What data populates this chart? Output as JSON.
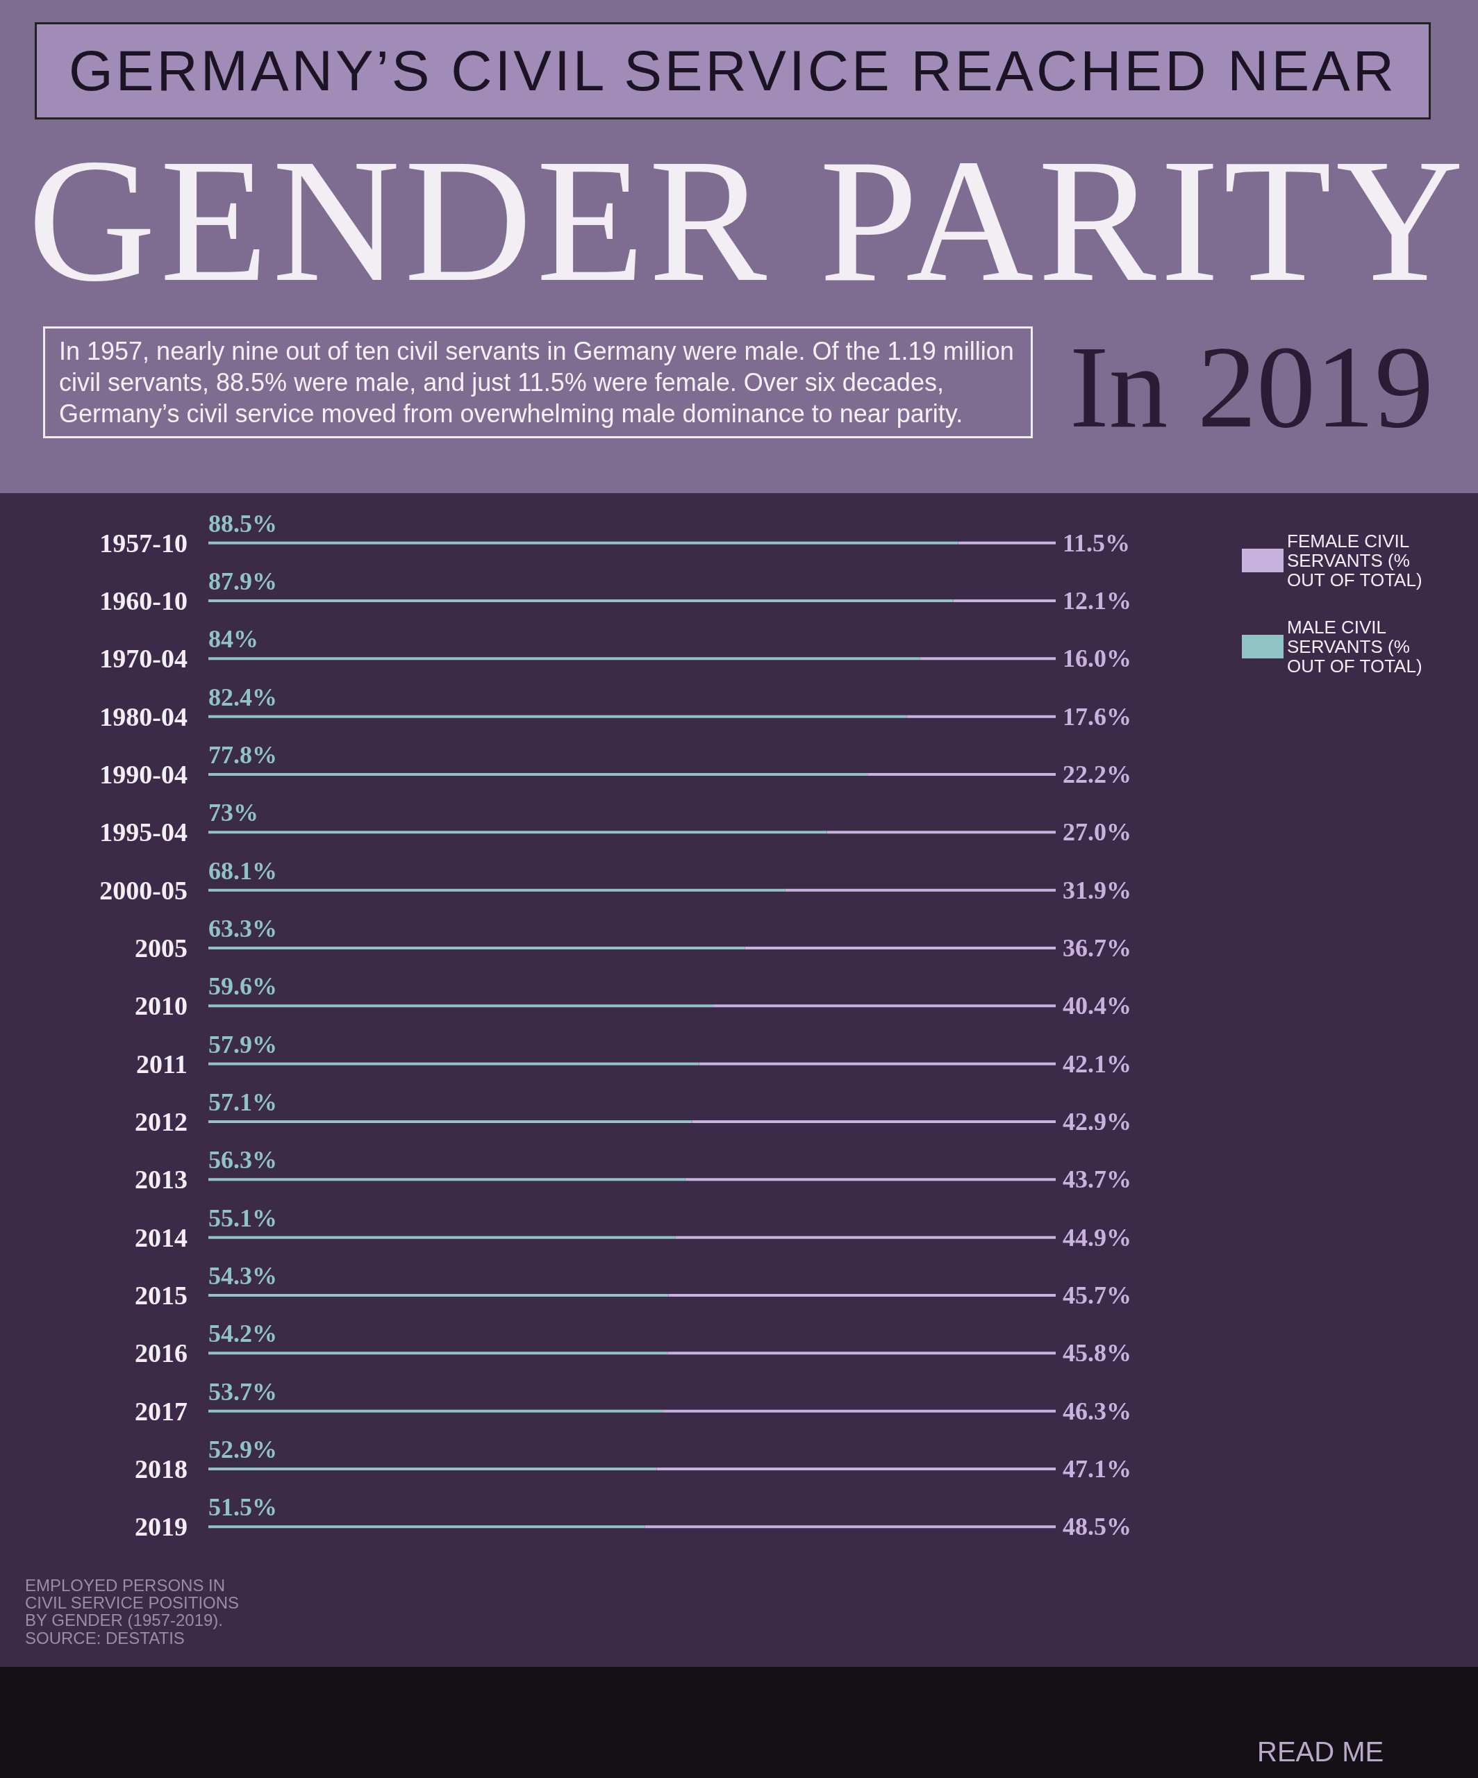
{
  "chart_data": {
    "type": "bar",
    "orientation": "horizontal",
    "title": "GERMANY’S CIVIL SERVICE REACHED NEAR",
    "subtitle": "GENDER PARITY",
    "annotations": [
      "In 2019",
      "In 1957, nearly nine out of ten civil servants in Germany were male. Of the 1.19 million civil servants, 88.5% were male, and just 11.5% were female. Over six decades, Germany’s civil service moved from overwhelming male dominance to near parity.",
      "EMPLOYED PERSONS IN CIVIL SERVICE POSITIONS BY GENDER (1957-2019). SOURCE: DESTATIS",
      "READ ME"
    ],
    "categories": [
      "1957-10",
      "1960-10",
      "1970-04",
      "1980-04",
      "1990-04",
      "1995-04",
      "2000-05",
      "2005",
      "2010",
      "2011",
      "2012",
      "2013",
      "2014",
      "2015",
      "2016",
      "2017",
      "2018",
      "2019"
    ],
    "series": [
      {
        "name": "MALE CIVIL SERVANTS (% OUT OF TOTAL)",
        "color": "#8fc3c6",
        "values": [
          88.5,
          87.9,
          84,
          82.4,
          77.8,
          73,
          68.1,
          63.3,
          59.6,
          57.9,
          57.1,
          56.3,
          55.1,
          54.3,
          54.2,
          53.7,
          52.9,
          51.5
        ],
        "value_labels": [
          "88.5%",
          "87.9%",
          "84%",
          "82.4%",
          "77.8%",
          "73%",
          "68.1%",
          "63.3%",
          "59.6%",
          "57.9%",
          "57.1%",
          "56.3%",
          "55.1%",
          "54.3%",
          "54.2%",
          "53.7%",
          "52.9%",
          "51.5%"
        ]
      },
      {
        "name": "FEMALE CIVIL SERVANTS (% OUT OF TOTAL)",
        "color": "#c8b2de",
        "values": [
          11.5,
          12.1,
          16.0,
          17.6,
          22.2,
          27.0,
          31.9,
          36.7,
          40.4,
          42.1,
          42.9,
          43.7,
          44.9,
          45.7,
          45.8,
          46.3,
          47.1,
          48.5
        ],
        "value_labels": [
          "11.5%",
          "12.1%",
          "16.0%",
          "17.6%",
          "22.2%",
          "27.0%",
          "31.9%",
          "36.7%",
          "40.4%",
          "42.1%",
          "42.9%",
          "43.7%",
          "44.9%",
          "45.7%",
          "45.8%",
          "46.3%",
          "47.1%",
          "48.5%"
        ]
      }
    ],
    "stacked": true,
    "legend": "top right",
    "tick_labels": false
  }
}
